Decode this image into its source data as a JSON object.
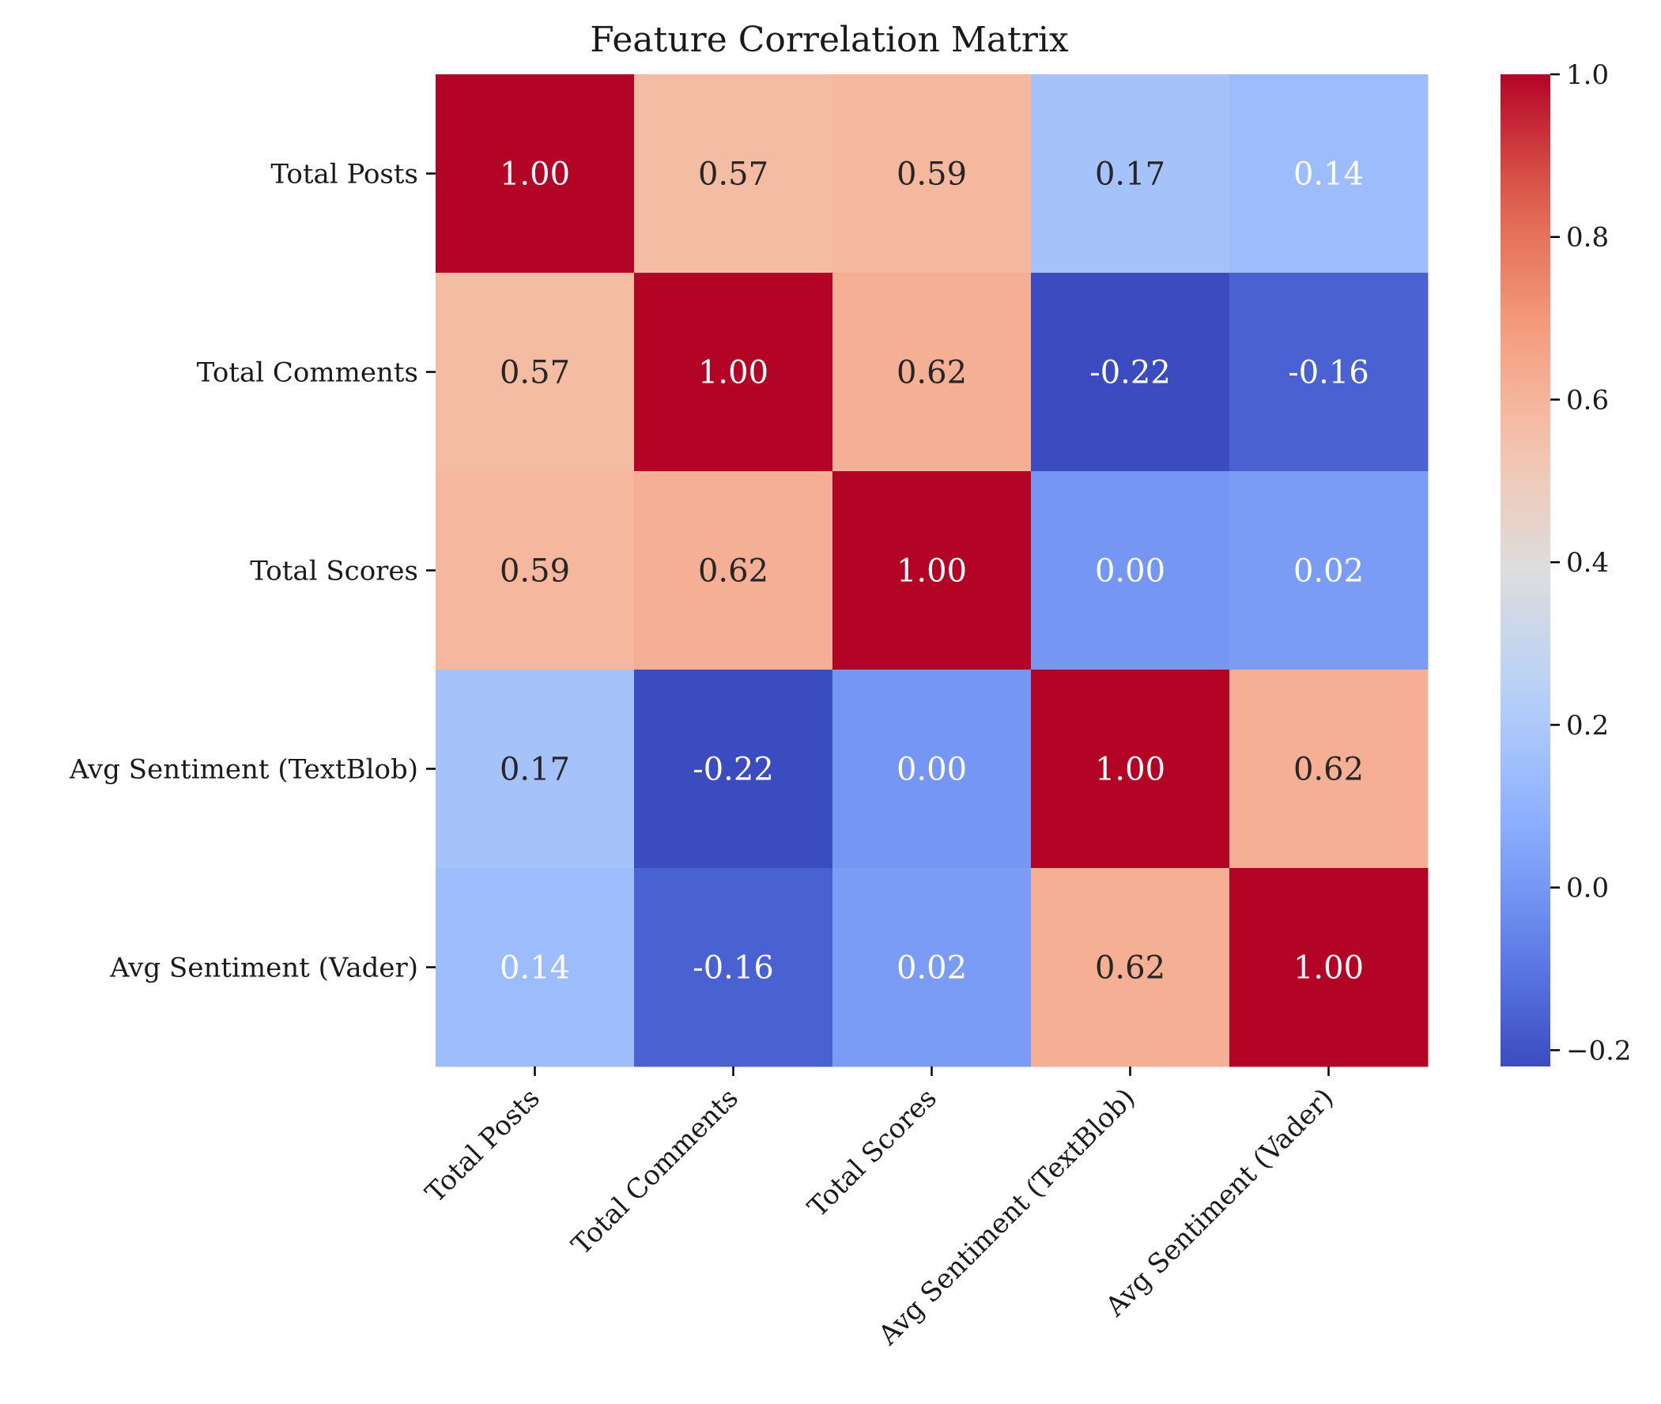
{
  "chart_data": {
    "type": "heatmap",
    "title": "Feature Correlation Matrix",
    "xlabel": "",
    "ylabel": "",
    "row_labels": [
      "Total Posts",
      "Total Comments",
      "Total Scores",
      "Avg Sentiment (TextBlob)",
      "Avg Sentiment (Vader)"
    ],
    "col_labels": [
      "Total Posts",
      "Total Comments",
      "Total Scores",
      "Avg Sentiment (TextBlob)",
      "Avg Sentiment (Vader)"
    ],
    "values": [
      [
        1.0,
        0.57,
        0.59,
        0.17,
        0.14
      ],
      [
        0.57,
        1.0,
        0.62,
        -0.22,
        -0.16
      ],
      [
        0.59,
        0.62,
        1.0,
        0.0,
        0.02
      ],
      [
        0.17,
        -0.22,
        0.0,
        1.0,
        0.62
      ],
      [
        0.14,
        -0.16,
        0.02,
        0.62,
        1.0
      ]
    ],
    "value_format": "0.00",
    "colormap": "coolwarm",
    "vmin": -0.22,
    "vmax": 1.0,
    "colorbar": {
      "ticks": [
        -0.2,
        0.0,
        0.2,
        0.4,
        0.6,
        0.8,
        1.0
      ],
      "tick_labels": [
        "−0.2",
        "0.0",
        "0.2",
        "0.4",
        "0.6",
        "0.8",
        "1.0"
      ]
    },
    "grid": false
  }
}
